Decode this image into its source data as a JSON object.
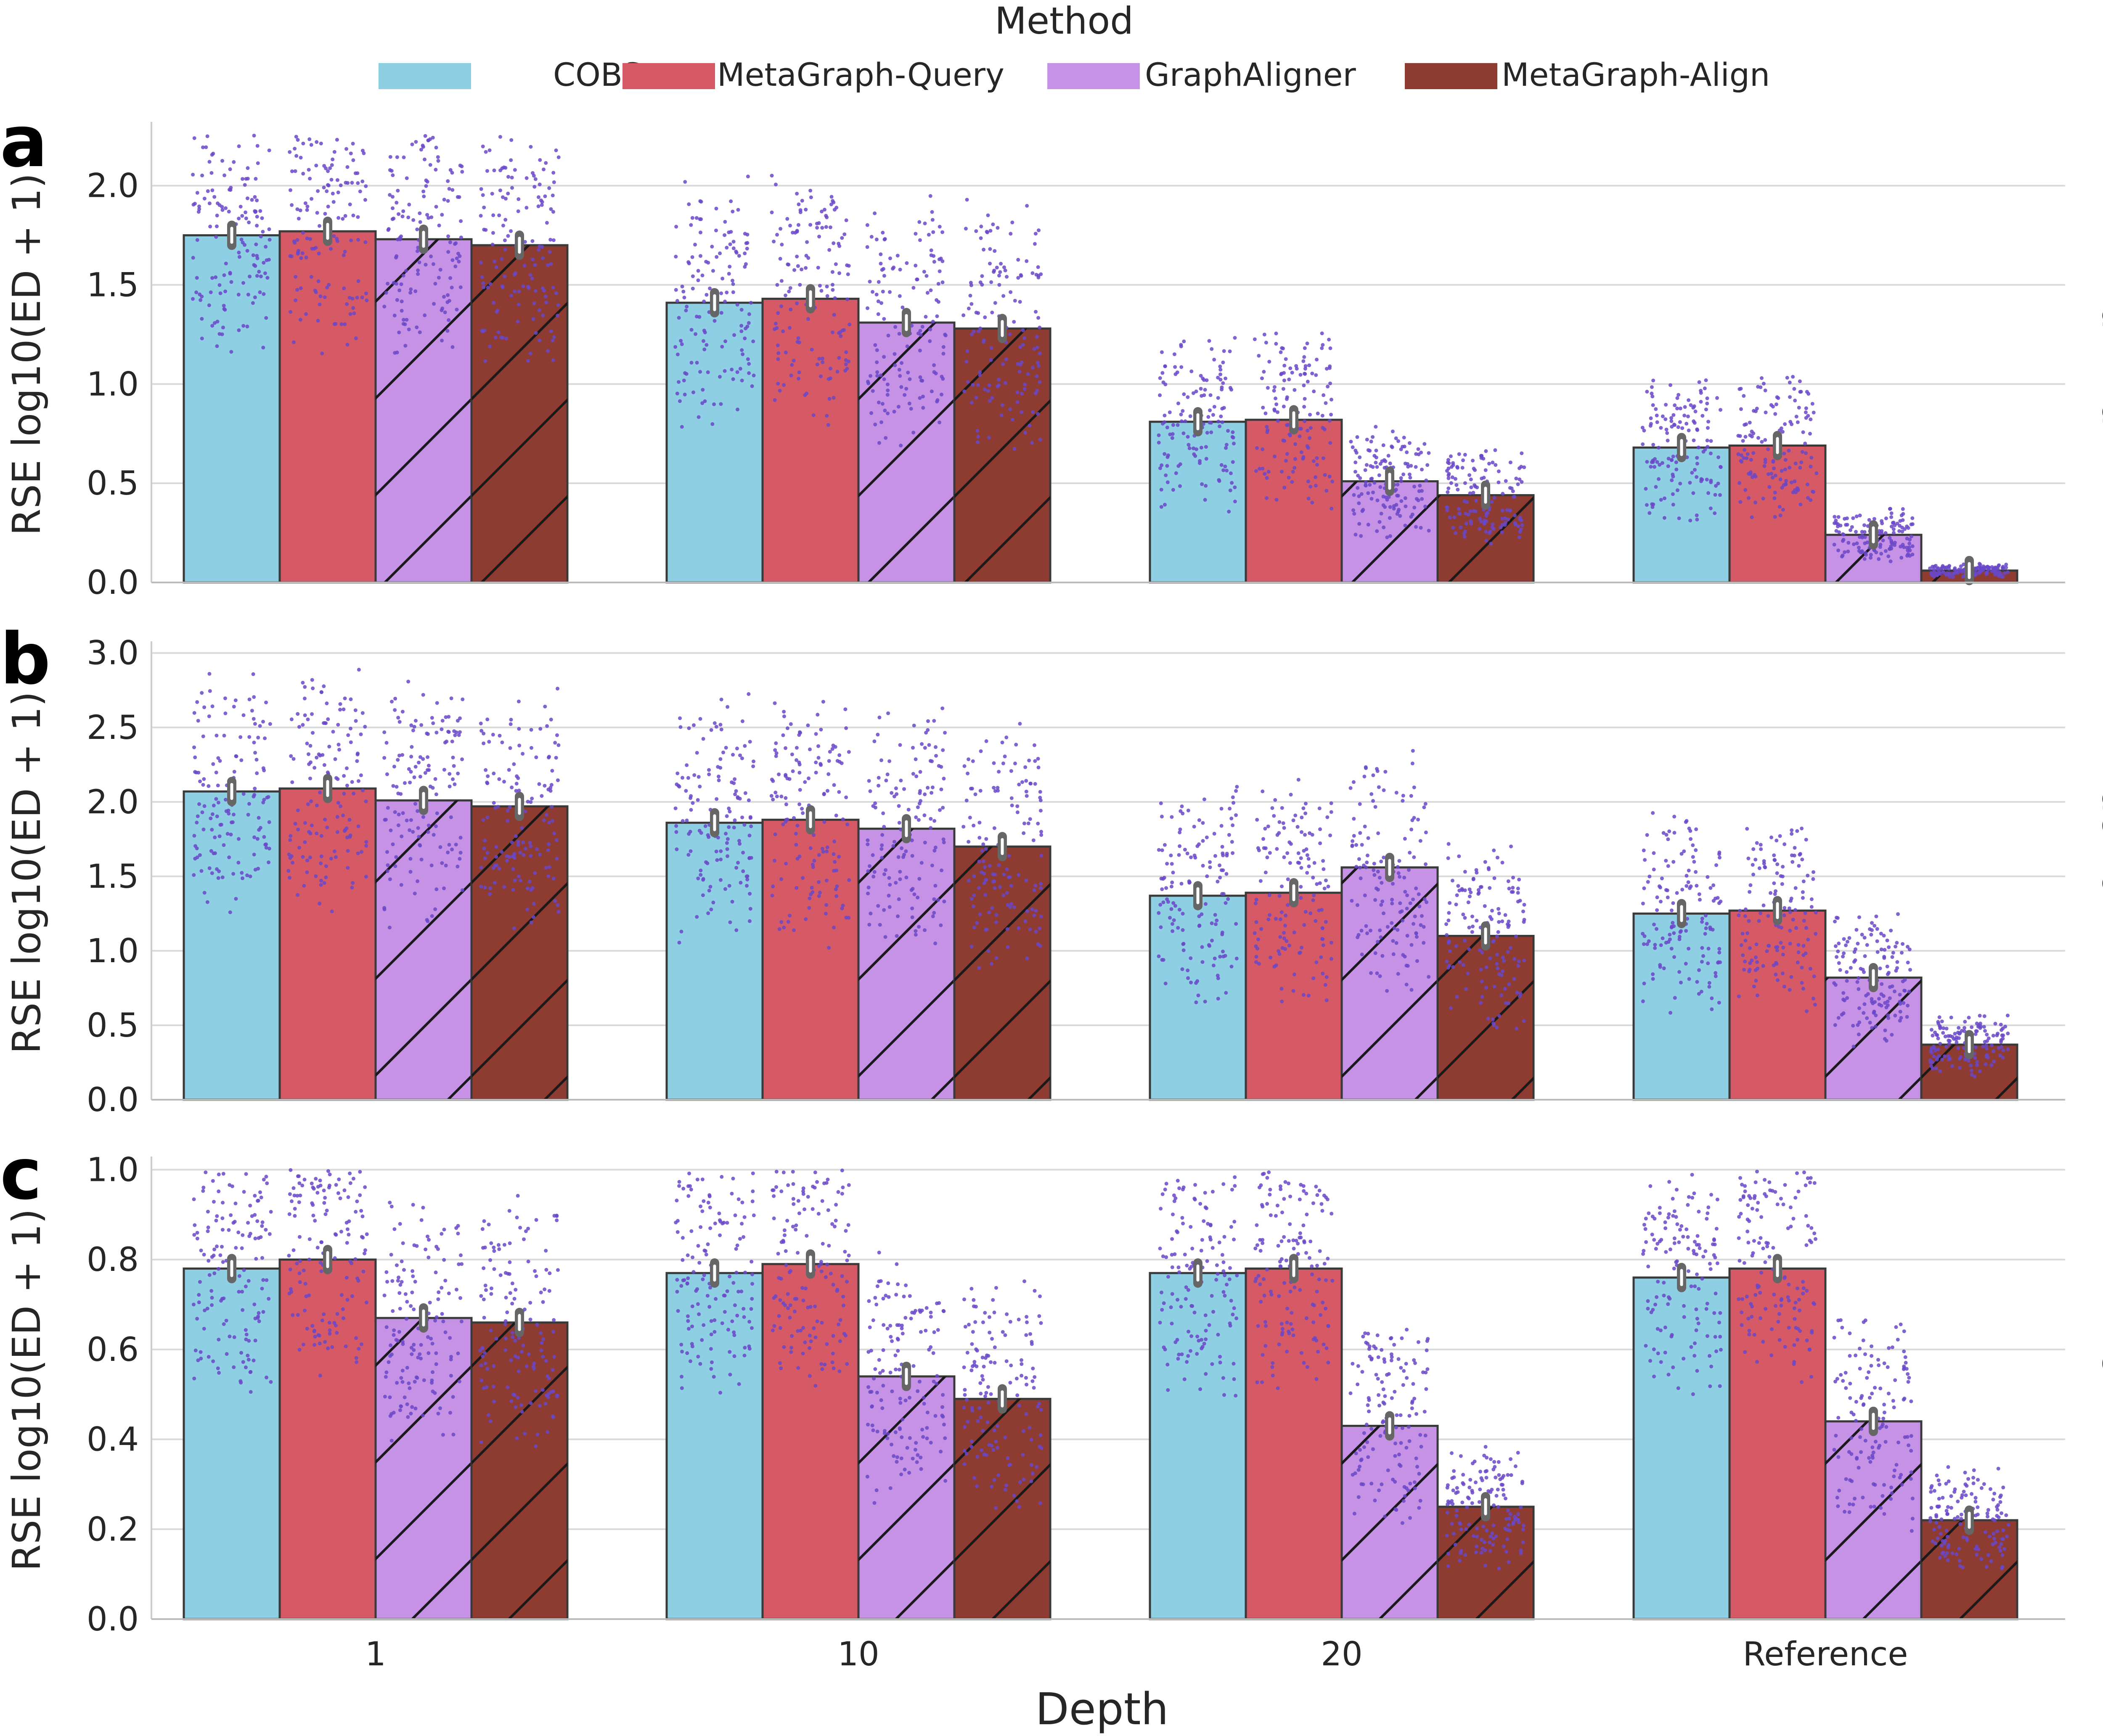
{
  "colors": {
    "COBS": "#8fcfe3",
    "MetaGraph-Query": "#d65a65",
    "GraphAligner": "#c592e5",
    "MetaGraph-Align": "#8e3b31",
    "points": "#6a48c8",
    "grid": "#d9d9d9",
    "bar_edge": "#3a3a3a",
    "error_bar": "#666666"
  },
  "legend": {
    "title": "Method",
    "items": [
      "COBS",
      "MetaGraph-Query",
      "GraphAligner",
      "MetaGraph-Align"
    ],
    "placement": "top-center"
  },
  "chart_data": [
    {
      "type": "bar",
      "panel": "a",
      "facet_label": "Illumina",
      "ylabel": "RSE log10(ED + 1)",
      "ylim": [
        0,
        2.3
      ],
      "yticks": [
        0.0,
        0.5,
        1.0,
        1.5,
        2.0
      ],
      "grid": true,
      "categories": [
        "1",
        "10",
        "20",
        "Reference"
      ],
      "series": [
        {
          "name": "COBS",
          "values": [
            1.75,
            1.41,
            0.81,
            0.68
          ]
        },
        {
          "name": "MetaGraph-Query",
          "values": [
            1.77,
            1.43,
            0.82,
            0.69
          ]
        },
        {
          "name": "GraphAligner",
          "values": [
            1.73,
            1.31,
            0.51,
            0.24
          ]
        },
        {
          "name": "MetaGraph-Align",
          "values": [
            1.7,
            1.28,
            0.44,
            0.06
          ]
        }
      ]
    },
    {
      "type": "bar",
      "panel": "b",
      "facet_label": "PacBio HiFi",
      "ylabel": "RSE log10(ED + 1)",
      "ylim": [
        0,
        3.05
      ],
      "yticks": [
        0.0,
        0.5,
        1.0,
        1.5,
        2.0,
        2.5,
        3.0
      ],
      "grid": true,
      "categories": [
        "1",
        "10",
        "20",
        "Reference"
      ],
      "series": [
        {
          "name": "COBS",
          "values": [
            2.07,
            1.86,
            1.37,
            1.25
          ]
        },
        {
          "name": "MetaGraph-Query",
          "values": [
            2.09,
            1.88,
            1.39,
            1.27
          ]
        },
        {
          "name": "GraphAligner",
          "values": [
            2.01,
            1.82,
            1.56,
            0.82
          ]
        },
        {
          "name": "MetaGraph-Align",
          "values": [
            1.97,
            1.7,
            1.1,
            0.37
          ]
        }
      ]
    },
    {
      "type": "bar",
      "panel": "c",
      "facet_label": "ONT",
      "ylabel": "RSE log10(ED + 1)",
      "ylim": [
        0,
        1.02
      ],
      "yticks": [
        0.0,
        0.2,
        0.4,
        0.6,
        0.8,
        1.0
      ],
      "grid": true,
      "categories": [
        "1",
        "10",
        "20",
        "Reference"
      ],
      "xlabel": "Depth",
      "series": [
        {
          "name": "COBS",
          "values": [
            0.78,
            0.77,
            0.77,
            0.76
          ]
        },
        {
          "name": "MetaGraph-Query",
          "values": [
            0.8,
            0.79,
            0.78,
            0.78
          ]
        },
        {
          "name": "GraphAligner",
          "values": [
            0.67,
            0.54,
            0.43,
            0.44
          ]
        },
        {
          "name": "MetaGraph-Align",
          "values": [
            0.66,
            0.49,
            0.25,
            0.22
          ]
        }
      ]
    }
  ]
}
